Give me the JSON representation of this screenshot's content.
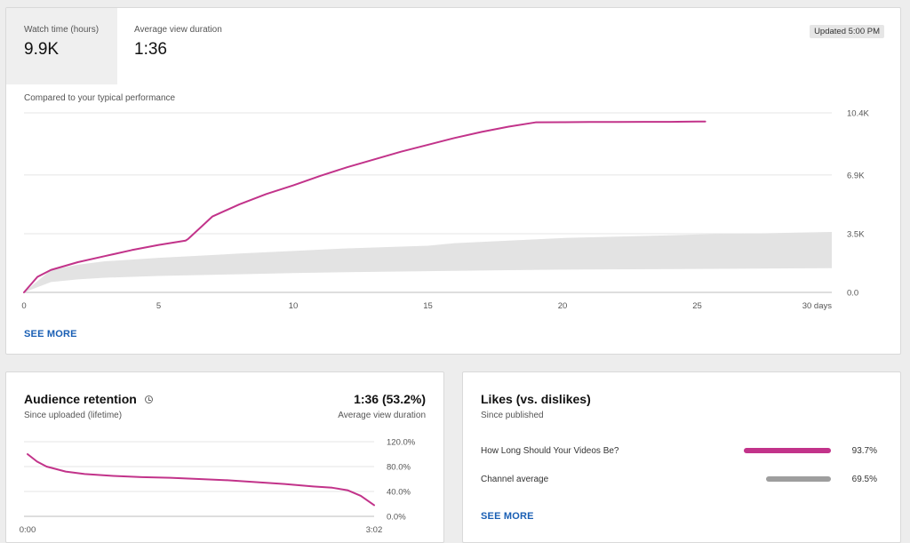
{
  "overview": {
    "metrics": [
      {
        "label": "Watch time (hours)",
        "value": "9.9K"
      },
      {
        "label": "Average view duration",
        "value": "1:36"
      }
    ],
    "updated": "Updated 5:00 PM",
    "comparison_label": "Compared to your typical performance",
    "see_more": "SEE MORE"
  },
  "retention": {
    "title": "Audience retention",
    "subtitle": "Since uploaded (lifetime)",
    "value": "1:36 (53.2%)",
    "value_label": "Average view duration"
  },
  "likes": {
    "title": "Likes (vs. dislikes)",
    "subtitle": "Since published",
    "rows": [
      {
        "label": "How Long Should Your Videos Be?",
        "pct": "93.7%",
        "value": 93.7,
        "color": "#c2338a"
      },
      {
        "label": "Channel average",
        "pct": "69.5%",
        "value": 69.5,
        "color": "#9e9e9e"
      }
    ],
    "see_more": "SEE MORE"
  },
  "chart_data": [
    {
      "type": "line",
      "title": "",
      "xlabel": "",
      "ylabel": "",
      "x_ticks": [
        "0",
        "5",
        "10",
        "15",
        "20",
        "25",
        "30 days"
      ],
      "y_ticks": [
        "0.0",
        "3.5K",
        "6.9K",
        "10.4K"
      ],
      "xlim": [
        0,
        30
      ],
      "ylim": [
        0,
        10400
      ],
      "grid": true,
      "series": [
        {
          "color": "#c2338a",
          "x": [
            0,
            0.5,
            1,
            2,
            3,
            4,
            5,
            6,
            6.1,
            7,
            8,
            9,
            10,
            11,
            12,
            13,
            14,
            15,
            16,
            17,
            18,
            19,
            20,
            21,
            22,
            23,
            24,
            25,
            25.3
          ],
          "y": [
            0,
            900,
            1300,
            1750,
            2100,
            2450,
            2750,
            3000,
            3100,
            4400,
            5100,
            5700,
            6200,
            6750,
            7250,
            7700,
            8150,
            8550,
            8950,
            9300,
            9600,
            9850,
            9860,
            9870,
            9870,
            9880,
            9880,
            9900,
            9900
          ]
        }
      ],
      "band": {
        "color": "#e3e3e3",
        "x": [
          0,
          1,
          2,
          3,
          5,
          8,
          10,
          12,
          15,
          16,
          18,
          20,
          25,
          30
        ],
        "low": [
          0,
          600,
          750,
          850,
          950,
          1050,
          1120,
          1170,
          1230,
          1250,
          1290,
          1320,
          1360,
          1400
        ],
        "high": [
          0,
          1300,
          1600,
          1800,
          2000,
          2250,
          2400,
          2550,
          2700,
          2850,
          3000,
          3150,
          3350,
          3500
        ]
      }
    },
    {
      "type": "line",
      "title": "",
      "xlabel": "",
      "ylabel": "",
      "x_ticks": [
        "0:00",
        "3:02"
      ],
      "y_ticks": [
        "0.0%",
        "40.0%",
        "80.0%",
        "120.0%"
      ],
      "xlim": [
        0,
        182
      ],
      "ylim": [
        0,
        120
      ],
      "grid": true,
      "series": [
        {
          "color": "#c2338a",
          "x": [
            0,
            5,
            10,
            20,
            30,
            45,
            60,
            75,
            90,
            105,
            120,
            135,
            150,
            160,
            168,
            175,
            182
          ],
          "y": [
            100,
            88,
            80,
            72,
            68,
            65,
            63,
            62,
            60,
            58,
            55,
            52,
            48,
            46,
            42,
            33,
            18
          ]
        }
      ]
    }
  ]
}
